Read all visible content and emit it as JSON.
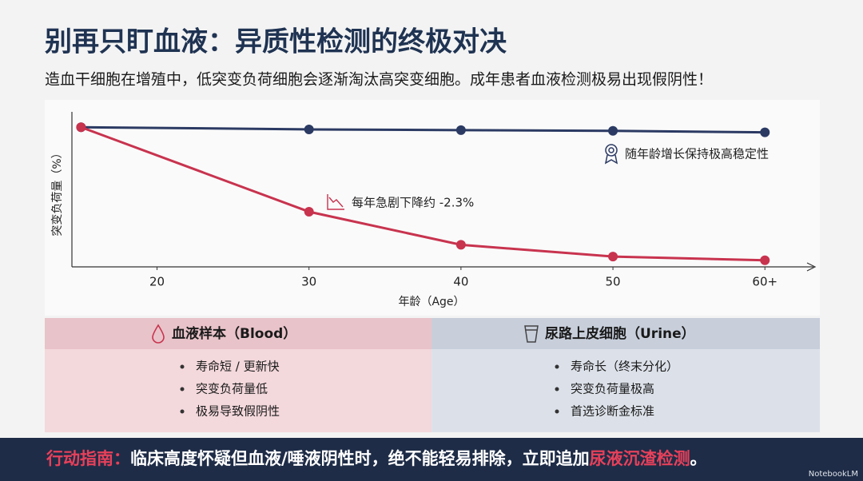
{
  "header": {
    "title": "别再只盯血液：异质性检测的终极对决",
    "subtitle": "造血干细胞在增殖中，低突变负荷细胞会逐渐淘汰高突变细胞。成年患者血液检测极易出现假阴性！"
  },
  "chart_data": {
    "type": "line",
    "x": [
      15,
      30,
      40,
      50,
      60
    ],
    "xlim": [
      14.4,
      63.3
    ],
    "xticks": [
      20,
      30,
      40,
      50,
      {
        "value": 60,
        "label": "60+"
      }
    ],
    "ylim": [
      0,
      100
    ],
    "xlabel": "年龄（Age）",
    "ylabel": "突变负荷量（%）",
    "series": [
      {
        "color": "#2b3a63",
        "values": [
          95,
          93.5,
          93,
          92.5,
          91.5
        ]
      },
      {
        "color": "#c8334e",
        "values": [
          95,
          37.5,
          15,
          7,
          4.5
        ]
      }
    ],
    "annotations": [
      "随年龄增长保持极高稳定性",
      "每年急剧下降约 -2.3%"
    ]
  },
  "table": {
    "columns": [
      {
        "title": "血液样本（Blood）",
        "items": [
          "寿命短 / 更新快",
          "突变负荷量低",
          "极易导致假阴性"
        ]
      },
      {
        "title": "尿路上皮细胞（Urine）",
        "items": [
          "寿命长（终末分化）",
          "突变负荷量极高",
          "首选诊断金标准"
        ]
      }
    ]
  },
  "footer": {
    "parts": [
      "行动指南：",
      "临床高度怀疑但血液/唾液阴性时，绝不能轻易排除，立即追加",
      "尿液沉渣检测",
      "。"
    ]
  },
  "watermark": "NotebookLM"
}
